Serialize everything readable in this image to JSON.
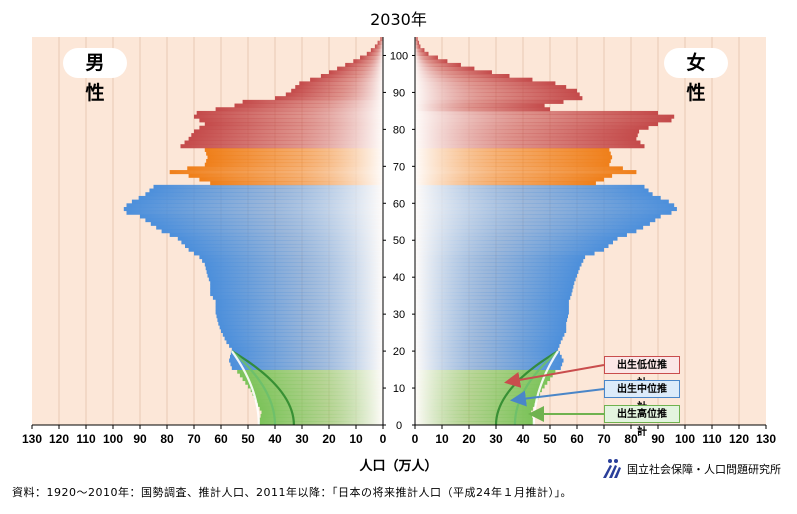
{
  "title": "2030年",
  "male_label": "男 性",
  "female_label": "女 性",
  "xlabel": "人口（万人）",
  "source": "資料：1920～2010年：国勢調査、推計人口、2011年以降：「日本の将来推計人口（平成24年１月推計）」。",
  "organization": "国立社会保障・人口問題研究所",
  "colors": {
    "background": "#fce7d8",
    "grid": "#e8c9b4",
    "age_0_14": "#7cc35a",
    "age_15_64": "#4c8fdb",
    "age_65_74": "#ef7f1a",
    "age_75_plus": "#c44a4a",
    "low_variant": "#c94d4d",
    "mid_variant": "#4a86c8",
    "high_variant": "#6fb24f"
  },
  "chart_data": {
    "type": "bar",
    "subtype": "population-pyramid",
    "title": "2030年",
    "xlabel": "人口（万人）",
    "ylabel": "",
    "xlim": [
      0,
      130
    ],
    "ylim": [
      0,
      105
    ],
    "x_ticks": [
      130,
      120,
      110,
      100,
      90,
      80,
      70,
      60,
      50,
      40,
      30,
      20,
      10,
      0
    ],
    "y_ticks": [
      0,
      10,
      20,
      30,
      40,
      50,
      60,
      70,
      80,
      90,
      100
    ],
    "age_bands": [
      {
        "from": 0,
        "to": 14,
        "color": "#7cc35a"
      },
      {
        "from": 15,
        "to": 64,
        "color": "#4c8fdb"
      },
      {
        "from": 65,
        "to": 74,
        "color": "#ef7f1a"
      },
      {
        "from": 75,
        "to": 105,
        "color": "#c44a4a"
      }
    ],
    "male_profile": [
      [
        0,
        46
      ],
      [
        3,
        45
      ],
      [
        6,
        47
      ],
      [
        9,
        49
      ],
      [
        12,
        52
      ],
      [
        14,
        54
      ],
      [
        15,
        56
      ],
      [
        17,
        57
      ],
      [
        20,
        56
      ],
      [
        22,
        58
      ],
      [
        25,
        60
      ],
      [
        27,
        61
      ],
      [
        30,
        62
      ],
      [
        33,
        62
      ],
      [
        35,
        64
      ],
      [
        38,
        64
      ],
      [
        40,
        65
      ],
      [
        43,
        66
      ],
      [
        45,
        68
      ],
      [
        47,
        72
      ],
      [
        50,
        76
      ],
      [
        52,
        82
      ],
      [
        54,
        86
      ],
      [
        56,
        90
      ],
      [
        57,
        95
      ],
      [
        58,
        96
      ],
      [
        59,
        95
      ],
      [
        60,
        93
      ],
      [
        62,
        88
      ],
      [
        64,
        85
      ],
      [
        65,
        64
      ],
      [
        67,
        72
      ],
      [
        68,
        79
      ],
      [
        70,
        66
      ],
      [
        72,
        65
      ],
      [
        74,
        66
      ],
      [
        75,
        75
      ],
      [
        77,
        72
      ],
      [
        79,
        70
      ],
      [
        81,
        66
      ],
      [
        83,
        70
      ],
      [
        84,
        69
      ],
      [
        86,
        55
      ],
      [
        87,
        52
      ],
      [
        88,
        40
      ],
      [
        89,
        36
      ],
      [
        90,
        34
      ],
      [
        92,
        31
      ],
      [
        94,
        23
      ],
      [
        96,
        17
      ],
      [
        98,
        11
      ],
      [
        100,
        6
      ],
      [
        102,
        3
      ],
      [
        104,
        1
      ],
      [
        105,
        0
      ]
    ],
    "female_profile": [
      [
        0,
        44
      ],
      [
        3,
        43
      ],
      [
        6,
        45
      ],
      [
        9,
        47
      ],
      [
        12,
        50
      ],
      [
        14,
        52
      ],
      [
        15,
        54
      ],
      [
        17,
        55
      ],
      [
        20,
        53
      ],
      [
        22,
        54
      ],
      [
        25,
        56
      ],
      [
        27,
        56
      ],
      [
        30,
        57
      ],
      [
        33,
        57
      ],
      [
        35,
        58
      ],
      [
        38,
        59
      ],
      [
        40,
        60
      ],
      [
        42,
        61
      ],
      [
        45,
        63
      ],
      [
        47,
        70
      ],
      [
        50,
        75
      ],
      [
        52,
        82
      ],
      [
        54,
        87
      ],
      [
        56,
        91
      ],
      [
        57,
        95
      ],
      [
        58,
        97
      ],
      [
        59,
        96
      ],
      [
        60,
        94
      ],
      [
        62,
        88
      ],
      [
        64,
        85
      ],
      [
        65,
        67
      ],
      [
        67,
        73
      ],
      [
        68,
        82
      ],
      [
        70,
        72
      ],
      [
        72,
        73
      ],
      [
        74,
        72
      ],
      [
        75,
        85
      ],
      [
        77,
        82
      ],
      [
        79,
        83
      ],
      [
        81,
        90
      ],
      [
        82,
        95
      ],
      [
        83,
        96
      ],
      [
        84,
        90
      ],
      [
        85,
        50
      ],
      [
        86,
        48
      ],
      [
        87,
        55
      ],
      [
        88,
        62
      ],
      [
        90,
        60
      ],
      [
        92,
        52
      ],
      [
        94,
        35
      ],
      [
        96,
        22
      ],
      [
        98,
        12
      ],
      [
        100,
        5
      ],
      [
        102,
        2
      ],
      [
        104,
        1
      ],
      [
        105,
        0
      ]
    ],
    "projection_variants": [
      {
        "name": "出生低位推計",
        "color": "#c94d4d",
        "male_at_0": 33,
        "female_at_0": 30
      },
      {
        "name": "出生中位推計",
        "color": "#4a86c8",
        "male_at_0": 40,
        "female_at_0": 37
      },
      {
        "name": "出生高位推計",
        "color": "#6fb24f",
        "male_at_0": 46,
        "female_at_0": 44
      }
    ]
  }
}
